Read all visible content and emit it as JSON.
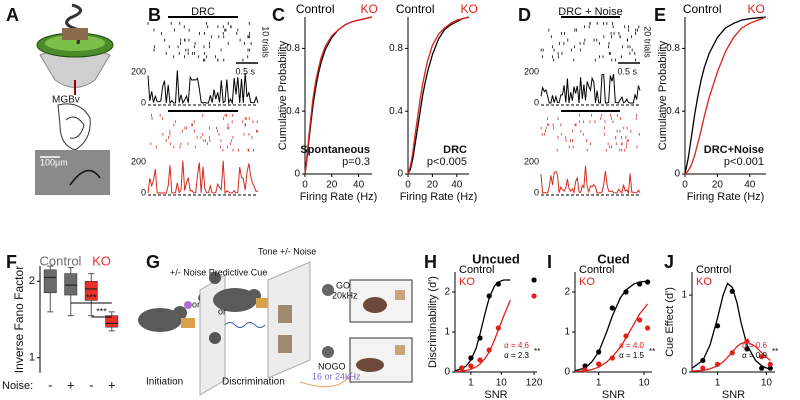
{
  "panels": {
    "labels": [
      "A",
      "B",
      "C",
      "D",
      "E",
      "F",
      "G",
      "H",
      "I",
      "J"
    ],
    "a": {
      "region": "MGBv",
      "scale": "100μm"
    },
    "b": {
      "stimulus": "DRC",
      "trials": "10 trials",
      "time": "0.5 s",
      "psth_ticks": [
        "200",
        "0",
        "200",
        "0"
      ]
    },
    "d": {
      "stimulus": "DRC + Noise",
      "trials": "20 trials",
      "time": "0.5 s",
      "psth_ticks": [
        "200",
        "0",
        "200",
        "0"
      ]
    },
    "g": {
      "cue": "+/- Noise Predictive Cue",
      "tone": "Tone +/- Noise",
      "or": [
        "or",
        "or"
      ],
      "go": "GO",
      "go_freq": "20kHz",
      "nogo": "NOGO",
      "nogo_freq": "16 or 24kHz",
      "phases": [
        "Initiation",
        "Discrimination"
      ]
    }
  },
  "chart_data": [
    {
      "type": "line",
      "y_label": "Cumulative Probability",
      "x_label": "Firing Rate (Hz)",
      "annotation": "Spontaneous",
      "p_text": "p=0.3",
      "xlim": [
        0,
        50
      ],
      "xticks": [
        0,
        20,
        40
      ],
      "ylim": [
        0,
        1
      ],
      "yticks": [
        0,
        0.4,
        0.8
      ],
      "series": [
        {
          "name": "Control",
          "color": "#000000",
          "x": [
            0,
            1,
            2,
            3,
            4,
            5,
            6,
            8,
            10,
            12,
            15,
            20,
            25,
            30,
            35,
            40,
            45,
            50
          ],
          "values": [
            0,
            0.06,
            0.14,
            0.22,
            0.3,
            0.37,
            0.44,
            0.55,
            0.64,
            0.71,
            0.79,
            0.87,
            0.92,
            0.95,
            0.97,
            0.98,
            0.99,
            1
          ]
        },
        {
          "name": "KO",
          "color": "#e0201b",
          "x": [
            0,
            1,
            2,
            3,
            4,
            5,
            6,
            8,
            10,
            12,
            15,
            20,
            25,
            30,
            35,
            40,
            45,
            50
          ],
          "values": [
            0,
            0.07,
            0.16,
            0.25,
            0.33,
            0.41,
            0.48,
            0.59,
            0.67,
            0.74,
            0.81,
            0.88,
            0.92,
            0.95,
            0.97,
            0.98,
            0.99,
            1
          ]
        }
      ]
    },
    {
      "type": "line",
      "x_label": "Firing Rate (Hz)",
      "annotation": "DRC",
      "p_text": "p<0.005",
      "xlim": [
        0,
        50
      ],
      "xticks": [
        0,
        20,
        40
      ],
      "ylim": [
        0,
        1
      ],
      "yticks": [
        0,
        0.4,
        0.8
      ],
      "series": [
        {
          "name": "Control",
          "color": "#000000",
          "x": [
            0,
            2,
            4,
            6,
            8,
            10,
            12,
            14,
            16,
            20,
            25,
            30,
            35,
            40,
            45,
            50
          ],
          "values": [
            0,
            0.03,
            0.1,
            0.2,
            0.3,
            0.4,
            0.5,
            0.58,
            0.65,
            0.76,
            0.86,
            0.92,
            0.95,
            0.97,
            0.99,
            1
          ]
        },
        {
          "name": "KO",
          "color": "#e0201b",
          "x": [
            0,
            2,
            4,
            6,
            8,
            10,
            12,
            14,
            16,
            20,
            25,
            30,
            35,
            40,
            45,
            50
          ],
          "values": [
            0,
            0.05,
            0.14,
            0.26,
            0.37,
            0.48,
            0.57,
            0.65,
            0.72,
            0.82,
            0.89,
            0.93,
            0.96,
            0.98,
            0.99,
            1
          ]
        }
      ]
    },
    {
      "type": "line",
      "y_label": "Cumulative Probability",
      "x_label": "Firing Rate (Hz)",
      "annotation": "DRC+Noise",
      "p_text": "p<0.001",
      "xlim": [
        0,
        50
      ],
      "xticks": [
        0,
        20,
        40
      ],
      "ylim": [
        0,
        1
      ],
      "yticks": [
        0,
        0.4,
        0.8
      ],
      "series": [
        {
          "name": "Control",
          "color": "#000000",
          "x": [
            0,
            2,
            4,
            6,
            8,
            10,
            12,
            15,
            20,
            25,
            30,
            35,
            40,
            45,
            50
          ],
          "values": [
            0,
            0.1,
            0.24,
            0.38,
            0.5,
            0.6,
            0.68,
            0.77,
            0.87,
            0.93,
            0.96,
            0.98,
            0.99,
            0.995,
            1
          ]
        },
        {
          "name": "KO",
          "color": "#e0201b",
          "x": [
            0,
            2,
            4,
            6,
            8,
            10,
            12,
            15,
            20,
            25,
            30,
            35,
            40,
            45,
            50
          ],
          "values": [
            0,
            0.02,
            0.06,
            0.12,
            0.2,
            0.28,
            0.37,
            0.49,
            0.65,
            0.78,
            0.87,
            0.93,
            0.96,
            0.98,
            1
          ]
        }
      ]
    },
    {
      "type": "box",
      "y_label": "Inverse Fano Factor",
      "x_title": "Noise:",
      "categories": [
        "-",
        "+",
        "-",
        "+"
      ],
      "ylim": [
        0.8,
        2.2
      ],
      "yticks": [
        1,
        2
      ],
      "significance": [
        "***",
        "***"
      ],
      "series": [
        {
          "name": "Control",
          "color": "#6b6b6b",
          "boxes": [
            {
              "min": 1.6,
              "q1": 1.85,
              "median": 2.05,
              "q3": 2.15,
              "max": 2.2
            },
            {
              "min": 1.55,
              "q1": 1.82,
              "median": 1.95,
              "q3": 2.1,
              "max": 2.18
            }
          ]
        },
        {
          "name": "KO",
          "color": "#e8312b",
          "boxes": [
            {
              "min": 1.55,
              "q1": 1.75,
              "median": 1.9,
              "q3": 2.0,
              "max": 2.1
            },
            {
              "min": 1.35,
              "q1": 1.4,
              "median": 1.45,
              "q3": 1.55,
              "max": 1.6
            }
          ]
        }
      ]
    },
    {
      "type": "scatter",
      "title": "Uncued",
      "y_label": "Discriminability (d')",
      "x_label": "SNR",
      "log_x": true,
      "xlim": [
        0.3,
        150
      ],
      "xticks": [
        1,
        10,
        120
      ],
      "ylim": [
        0,
        2.5
      ],
      "yticks": [
        0,
        1,
        2
      ],
      "annotations": [
        {
          "text": "α = 4.6",
          "color": "#e0201b"
        },
        {
          "text": "α = 2.3",
          "color": "#000000"
        },
        {
          "text": "**",
          "color": "#000000"
        }
      ],
      "series": [
        {
          "name": "Control",
          "color": "#000000",
          "x": [
            0.5,
            1,
            2,
            4,
            8,
            120
          ],
          "values": [
            0.1,
            0.35,
            0.85,
            1.9,
            2.2,
            2.3
          ],
          "fit_x": [
            0.3,
            0.5,
            0.7,
            1,
            1.5,
            2,
            3,
            4,
            6,
            8,
            12,
            20
          ],
          "fit_values": [
            0.03,
            0.08,
            0.15,
            0.3,
            0.6,
            0.95,
            1.5,
            1.85,
            2.15,
            2.25,
            2.3,
            2.3
          ]
        },
        {
          "name": "KO",
          "color": "#e0201b",
          "x": [
            0.5,
            1,
            2,
            4,
            8,
            120
          ],
          "values": [
            0.1,
            0.15,
            0.3,
            0.55,
            1.1,
            1.9
          ],
          "fit_x": [
            0.3,
            0.5,
            0.7,
            1,
            1.5,
            2,
            3,
            4,
            6,
            8,
            12,
            20
          ],
          "fit_values": [
            0.01,
            0.02,
            0.04,
            0.07,
            0.13,
            0.2,
            0.35,
            0.5,
            0.8,
            1.05,
            1.4,
            1.8
          ]
        }
      ]
    },
    {
      "type": "scatter",
      "title": "Cued",
      "x_label": "SNR",
      "log_x": true,
      "xlim": [
        0.3,
        15
      ],
      "xticks": [
        1,
        10
      ],
      "ylim": [
        0,
        2.5
      ],
      "yticks": [
        0,
        1,
        2
      ],
      "annotations": [
        {
          "text": "α = 4.0",
          "color": "#e0201b"
        },
        {
          "text": "α = 1.5",
          "color": "#000000"
        },
        {
          "text": "**",
          "color": "#000000"
        }
      ],
      "series": [
        {
          "name": "Control",
          "color": "#000000",
          "x": [
            0.5,
            1,
            2,
            4,
            8,
            12
          ],
          "values": [
            0.15,
            0.5,
            1.6,
            2.0,
            2.2,
            2.25
          ],
          "fit_x": [
            0.3,
            0.5,
            0.7,
            1,
            1.5,
            2,
            3,
            4,
            6,
            8,
            12
          ],
          "fit_values": [
            0.03,
            0.1,
            0.25,
            0.5,
            1.0,
            1.4,
            1.85,
            2.05,
            2.2,
            2.25,
            2.27
          ]
        },
        {
          "name": "KO",
          "color": "#e0201b",
          "x": [
            0.5,
            1,
            2,
            4,
            8,
            12
          ],
          "values": [
            0.05,
            0.2,
            0.35,
            0.9,
            1.3,
            1.1
          ],
          "fit_x": [
            0.3,
            0.5,
            0.7,
            1,
            1.5,
            2,
            3,
            4,
            6,
            8,
            12
          ],
          "fit_values": [
            0.01,
            0.03,
            0.06,
            0.12,
            0.25,
            0.38,
            0.62,
            0.85,
            1.2,
            1.45,
            1.7
          ]
        }
      ]
    },
    {
      "type": "scatter",
      "y_label": "Cue Effect (d')",
      "x_label": "SNR",
      "log_x": true,
      "xlim": [
        0.3,
        15
      ],
      "xticks": [
        1,
        10
      ],
      "ylim": [
        0,
        1.3
      ],
      "yticks": [
        0,
        1
      ],
      "annotations": [
        {
          "text": "α = 0.6",
          "color": "#e0201b"
        },
        {
          "text": "α = 0.9",
          "color": "#000000"
        },
        {
          "text": "**",
          "color": "#000000"
        }
      ],
      "series": [
        {
          "name": "Control",
          "color": "#000000",
          "x": [
            0.5,
            1,
            2,
            4,
            8,
            12
          ],
          "values": [
            0.15,
            0.6,
            1.05,
            0.3,
            0.05,
            0.05
          ],
          "fit_x": [
            0.3,
            0.5,
            0.7,
            1,
            1.3,
            1.6,
            2,
            2.5,
            3,
            4,
            6,
            8,
            12
          ],
          "fit_values": [
            0.05,
            0.15,
            0.35,
            0.7,
            1.0,
            1.15,
            1.1,
            0.9,
            0.65,
            0.35,
            0.15,
            0.08,
            0.03
          ]
        },
        {
          "name": "KO",
          "color": "#e0201b",
          "x": [
            0.5,
            1,
            2,
            4,
            8,
            12
          ],
          "values": [
            0.05,
            0.1,
            0.25,
            0.4,
            0.2,
            0.1
          ],
          "fit_x": [
            0.3,
            0.5,
            0.7,
            1,
            1.3,
            1.6,
            2,
            2.5,
            3,
            4,
            6,
            8,
            12
          ],
          "fit_values": [
            0.01,
            0.02,
            0.04,
            0.08,
            0.13,
            0.19,
            0.26,
            0.33,
            0.37,
            0.39,
            0.33,
            0.25,
            0.15
          ]
        }
      ]
    }
  ]
}
